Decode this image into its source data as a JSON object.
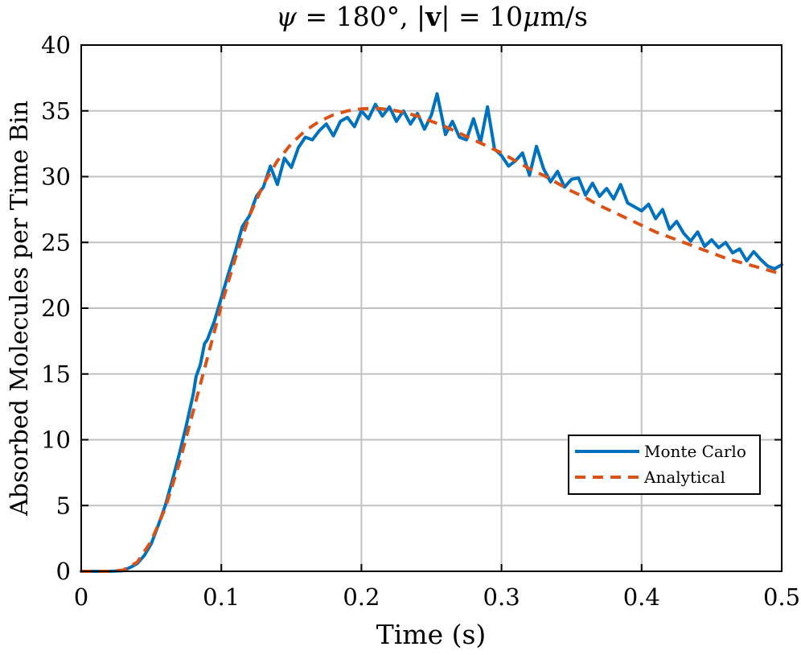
{
  "chart_data": {
    "type": "line",
    "title_parts": {
      "psi": "ψ",
      "eq1": " = 180°, |",
      "v": "v",
      "eq2": "| = 10",
      "mu": "μ",
      "unit": "m/s"
    },
    "xlabel": "Time (s)",
    "ylabel": "Absorbed Molecules per Time Bin",
    "xlim": [
      0,
      0.5
    ],
    "ylim": [
      0,
      40
    ],
    "xticks": [
      0,
      0.1,
      0.2,
      0.3,
      0.4,
      0.5
    ],
    "xtick_labels": [
      "0",
      "0.1",
      "0.2",
      "0.3",
      "0.4",
      "0.5"
    ],
    "yticks": [
      0,
      5,
      10,
      15,
      20,
      25,
      30,
      35,
      40
    ],
    "ytick_labels": [
      "0",
      "5",
      "10",
      "15",
      "20",
      "25",
      "30",
      "35",
      "40"
    ],
    "grid": true,
    "legend_position": "lower-right",
    "series": [
      {
        "name": "Monte Carlo",
        "color": "#0072BD",
        "style": "solid",
        "x": [
          0,
          0.02,
          0.03,
          0.035,
          0.04,
          0.045,
          0.05,
          0.055,
          0.06,
          0.065,
          0.07,
          0.075,
          0.08,
          0.082,
          0.085,
          0.088,
          0.09,
          0.095,
          0.1,
          0.105,
          0.11,
          0.115,
          0.12,
          0.125,
          0.13,
          0.135,
          0.14,
          0.145,
          0.15,
          0.155,
          0.16,
          0.165,
          0.17,
          0.175,
          0.18,
          0.185,
          0.19,
          0.195,
          0.2,
          0.205,
          0.21,
          0.215,
          0.22,
          0.225,
          0.23,
          0.235,
          0.24,
          0.245,
          0.25,
          0.254,
          0.26,
          0.265,
          0.27,
          0.275,
          0.28,
          0.285,
          0.29,
          0.295,
          0.3,
          0.305,
          0.31,
          0.315,
          0.32,
          0.325,
          0.33,
          0.335,
          0.34,
          0.345,
          0.35,
          0.355,
          0.36,
          0.365,
          0.37,
          0.375,
          0.38,
          0.385,
          0.39,
          0.395,
          0.4,
          0.405,
          0.41,
          0.415,
          0.42,
          0.425,
          0.43,
          0.435,
          0.44,
          0.445,
          0.45,
          0.455,
          0.46,
          0.465,
          0.47,
          0.475,
          0.48,
          0.485,
          0.49,
          0.495,
          0.5
        ],
        "y": [
          0,
          0,
          0.05,
          0.3,
          0.6,
          1.2,
          2.1,
          3.5,
          5.0,
          6.9,
          8.9,
          11.1,
          13.5,
          14.8,
          15.7,
          17.3,
          17.6,
          19.0,
          20.8,
          22.6,
          24.3,
          26.2,
          27.0,
          28.5,
          29.2,
          30.8,
          29.4,
          31.4,
          30.7,
          32.2,
          33.0,
          32.8,
          33.5,
          34.0,
          33.1,
          34.2,
          34.5,
          33.8,
          35.0,
          34.4,
          35.5,
          34.6,
          35.3,
          34.2,
          35.0,
          34.0,
          34.8,
          33.6,
          34.7,
          36.3,
          33.2,
          34.2,
          33.0,
          32.8,
          34.4,
          32.6,
          35.3,
          32.1,
          31.6,
          30.8,
          31.2,
          31.8,
          30.1,
          32.3,
          30.6,
          29.6,
          30.4,
          29.2,
          29.8,
          29.9,
          28.6,
          29.5,
          28.5,
          29.1,
          28.3,
          29.4,
          28.0,
          27.7,
          27.4,
          27.9,
          26.8,
          27.5,
          26.0,
          26.6,
          25.7,
          25.1,
          25.8,
          24.7,
          25.2,
          24.6,
          25.0,
          24.2,
          24.5,
          23.6,
          24.3,
          23.7,
          23.2,
          23.0,
          23.3
        ]
      },
      {
        "name": "Analytical",
        "color": "#D95319",
        "style": "dashed",
        "x": [
          0,
          0.02,
          0.03,
          0.04,
          0.05,
          0.06,
          0.07,
          0.08,
          0.09,
          0.1,
          0.11,
          0.12,
          0.13,
          0.14,
          0.15,
          0.16,
          0.17,
          0.18,
          0.19,
          0.2,
          0.21,
          0.22,
          0.23,
          0.24,
          0.25,
          0.26,
          0.27,
          0.28,
          0.29,
          0.3,
          0.31,
          0.32,
          0.33,
          0.34,
          0.35,
          0.36,
          0.37,
          0.38,
          0.39,
          0.4,
          0.41,
          0.42,
          0.43,
          0.44,
          0.45,
          0.46,
          0.47,
          0.48,
          0.49,
          0.5
        ],
        "y": [
          0,
          0,
          0.1,
          0.7,
          2.3,
          4.8,
          8.2,
          12.2,
          16.2,
          20.2,
          23.8,
          27.0,
          29.4,
          31.2,
          32.5,
          33.5,
          34.2,
          34.7,
          35.0,
          35.15,
          35.2,
          35.1,
          34.9,
          34.6,
          34.2,
          33.8,
          33.3,
          32.8,
          32.3,
          31.8,
          31.2,
          30.6,
          30.1,
          29.5,
          28.9,
          28.4,
          27.8,
          27.3,
          26.8,
          26.3,
          25.8,
          25.4,
          25.0,
          24.6,
          24.2,
          23.8,
          23.5,
          23.2,
          22.9,
          22.6
        ]
      }
    ]
  }
}
